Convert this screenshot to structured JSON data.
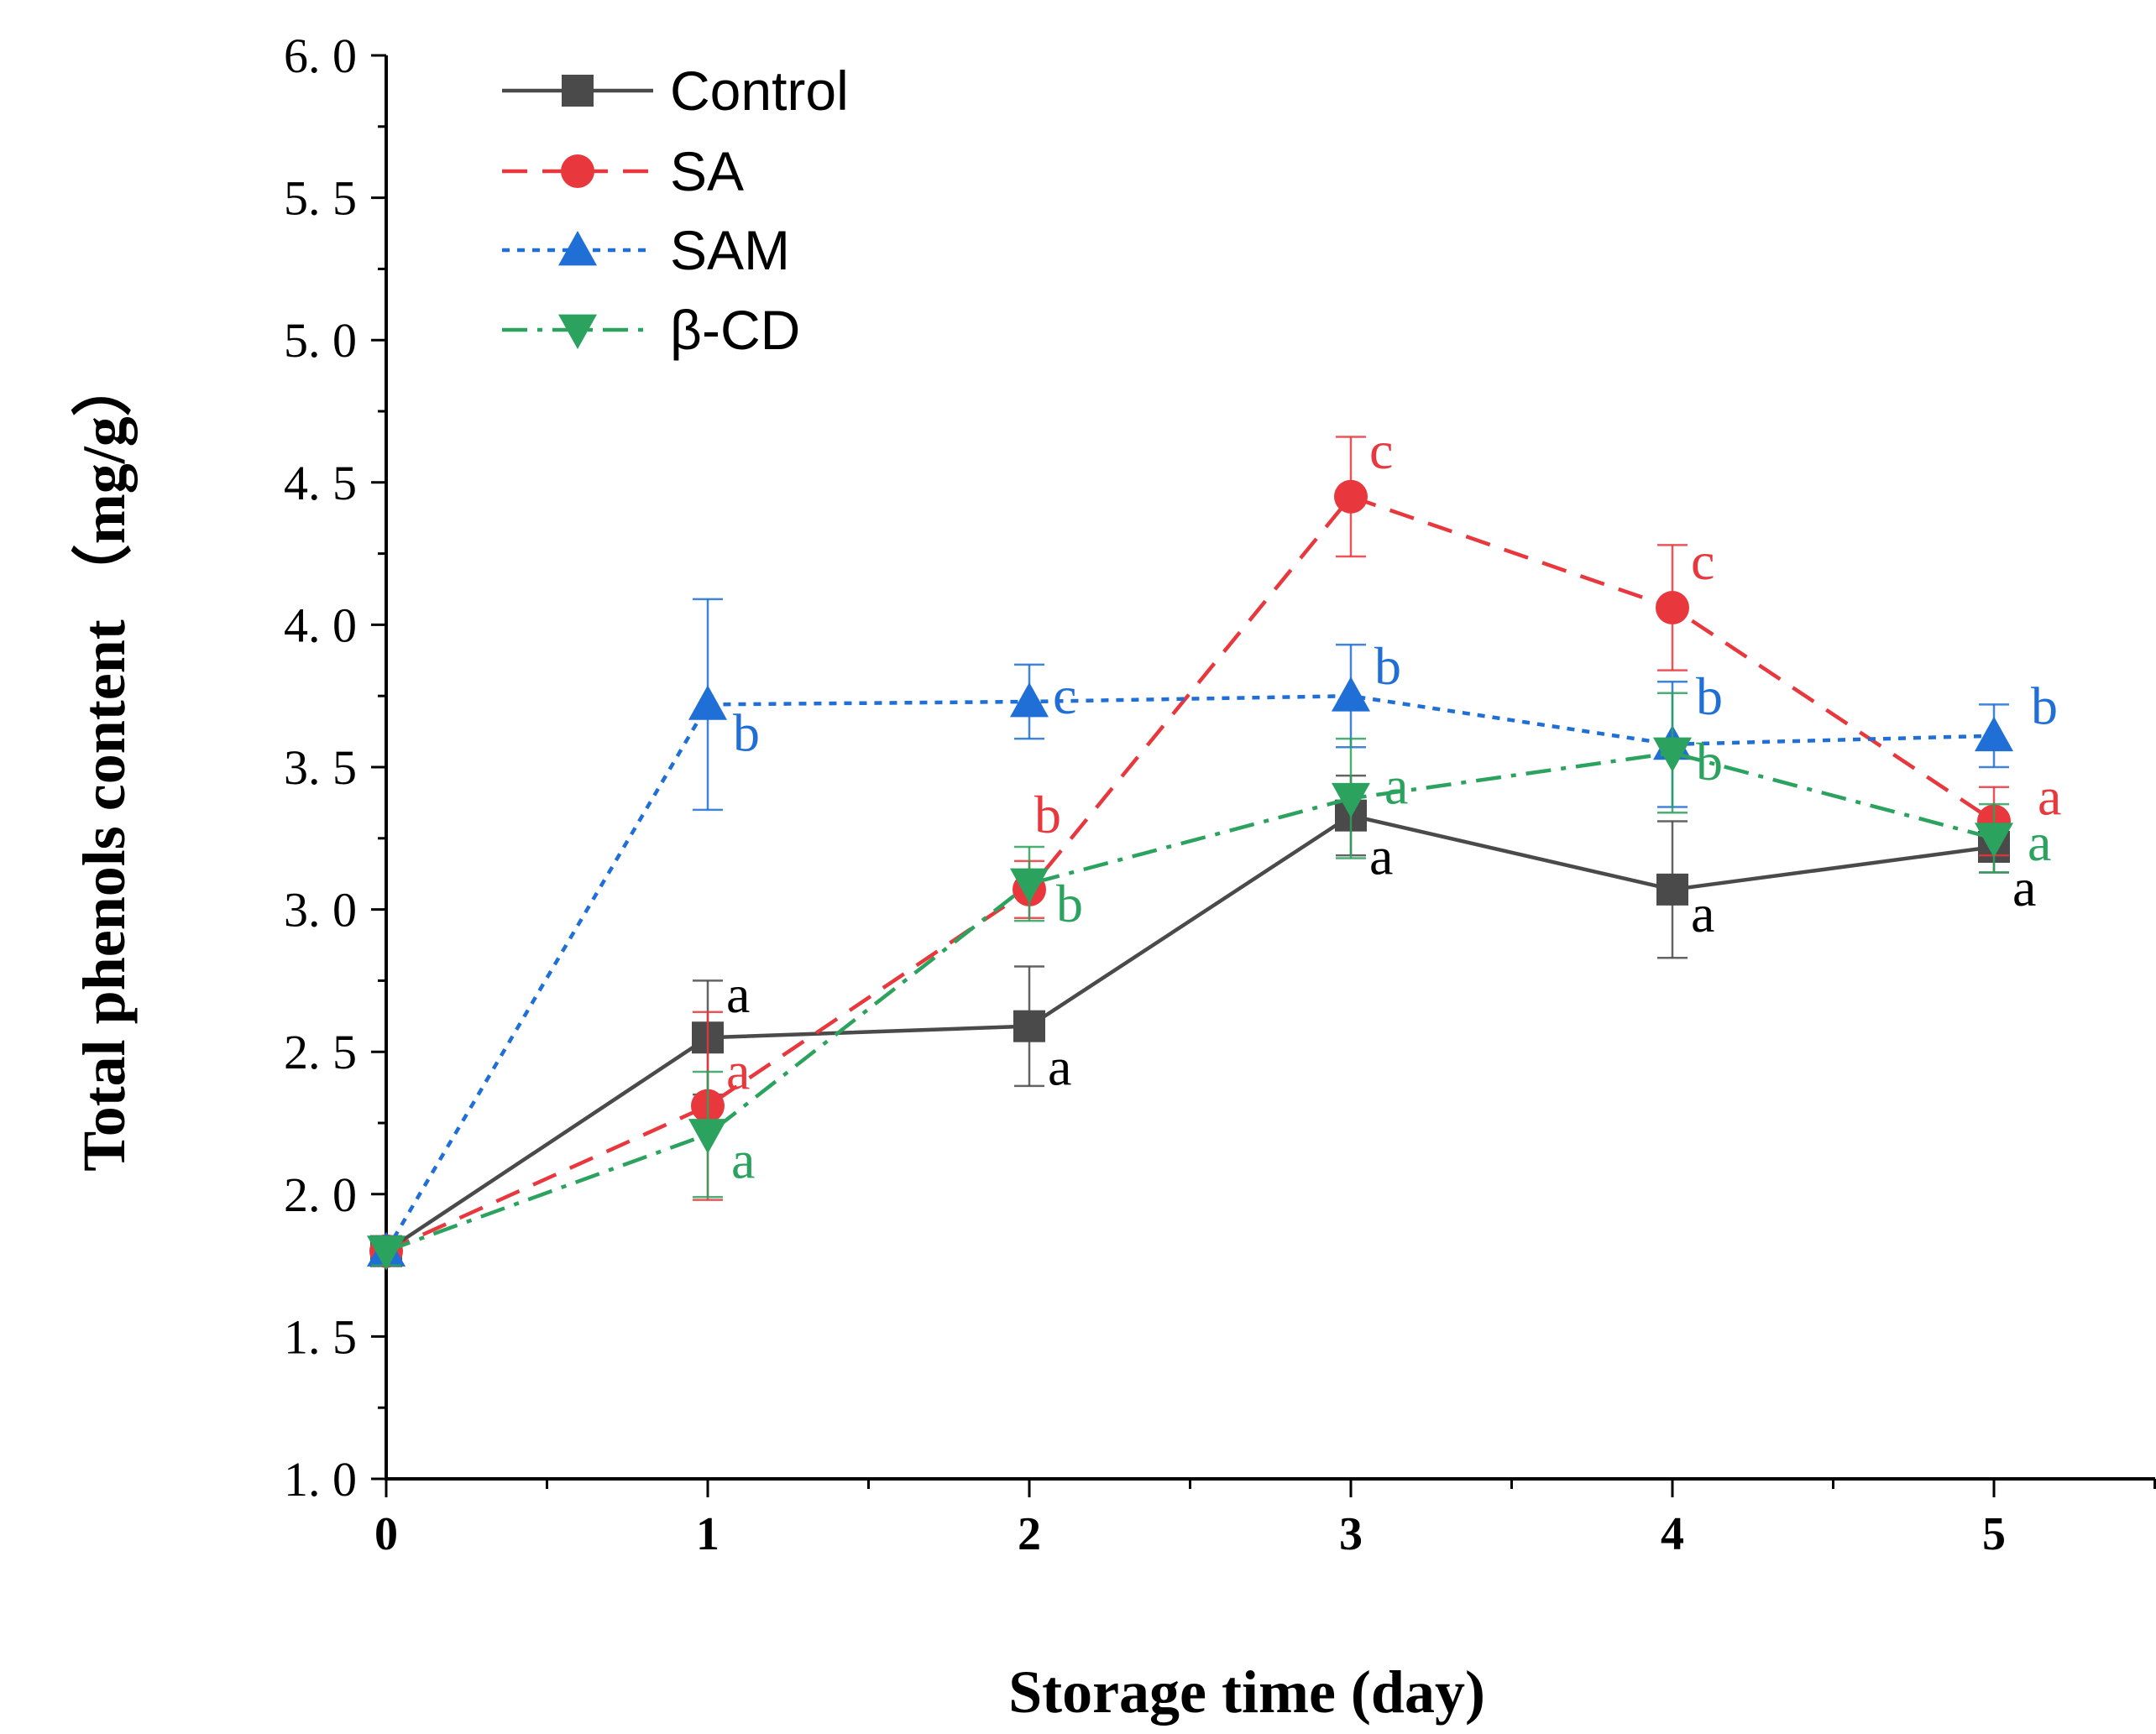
{
  "chart_data": {
    "type": "line",
    "xlabel": "Storage time (day)",
    "ylabel": "Total phenols content （mg/g）",
    "xlim": [
      0,
      5.5
    ],
    "ylim": [
      1.0,
      6.0
    ],
    "x": [
      0,
      1,
      2,
      3,
      4,
      5
    ],
    "x_tick_labels": [
      "0",
      "1",
      "2",
      "3",
      "4",
      "5"
    ],
    "y_tick_labels": [
      "1. 0",
      "1. 5",
      "2. 0",
      "2. 5",
      "3. 0",
      "3. 5",
      "4. 0",
      "4. 5",
      "5. 0",
      "5. 5",
      "6. 0"
    ],
    "y_ticks": [
      1.0,
      1.5,
      2.0,
      2.5,
      3.0,
      3.5,
      4.0,
      4.5,
      5.0,
      5.5,
      6.0
    ],
    "legend_position": "top-left",
    "series": [
      {
        "name": "Control",
        "color": "#4a4a4a",
        "marker": "square",
        "line_style": "solid",
        "values": [
          1.8,
          2.55,
          2.59,
          3.33,
          3.07,
          3.22
        ],
        "errors": [
          0.05,
          0.2,
          0.21,
          0.14,
          0.24,
          0.09
        ],
        "sig_labels": [
          "",
          "a",
          "a",
          "a",
          "a",
          "a"
        ]
      },
      {
        "name": "SA",
        "color": "#e8383d",
        "marker": "circle",
        "line_style": "dashed",
        "values": [
          1.8,
          2.31,
          3.07,
          4.45,
          4.06,
          3.31
        ],
        "errors": [
          0.05,
          0.33,
          0.1,
          0.21,
          0.22,
          0.12
        ],
        "sig_labels": [
          "",
          "a",
          "b",
          "c",
          "c",
          "a"
        ]
      },
      {
        "name": "SAM",
        "color": "#1f6fd6",
        "marker": "triangle-up",
        "line_style": "dotted",
        "values": [
          1.8,
          3.72,
          3.73,
          3.75,
          3.58,
          3.61
        ],
        "errors": [
          0.05,
          0.37,
          0.13,
          0.18,
          0.22,
          0.11
        ],
        "sig_labels": [
          "",
          "b",
          "c",
          "b",
          "b",
          "b"
        ]
      },
      {
        "name": "β-CD",
        "color": "#2ca25f",
        "marker": "triangle-down",
        "line_style": "dashdot",
        "values": [
          1.8,
          2.21,
          3.09,
          3.39,
          3.55,
          3.25
        ],
        "errors": [
          0.05,
          0.22,
          0.13,
          0.21,
          0.21,
          0.12
        ],
        "sig_labels": [
          "",
          "a",
          "b",
          "a",
          "b",
          "a"
        ]
      }
    ]
  }
}
